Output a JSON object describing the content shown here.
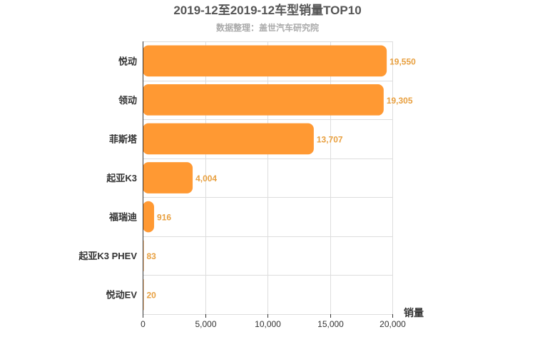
{
  "chart_data": {
    "type": "bar",
    "orientation": "horizontal",
    "title": "2019-12至2019-12车型销量TOP10",
    "subtitle": "数据整理：盖世汽车研究院",
    "xlabel": "销量",
    "ylabel": "",
    "categories": [
      "悦动",
      "领动",
      "菲斯塔",
      "起亚K3",
      "福瑞迪",
      "起亚K3 PHEV",
      "悦动EV"
    ],
    "values": [
      19550,
      19305,
      13707,
      4004,
      916,
      83,
      20
    ],
    "value_labels": [
      "19,550",
      "19,305",
      "13,707",
      "4,004",
      "916",
      "83",
      "20"
    ],
    "xlim": [
      0,
      20000
    ],
    "x_ticks": [
      0,
      5000,
      10000,
      15000,
      20000
    ],
    "x_tick_labels": [
      "0",
      "5,000",
      "10,000",
      "15,000",
      "20,000"
    ],
    "grid": true,
    "bar_color": "#ff9933",
    "label_color": "#e8a040"
  }
}
